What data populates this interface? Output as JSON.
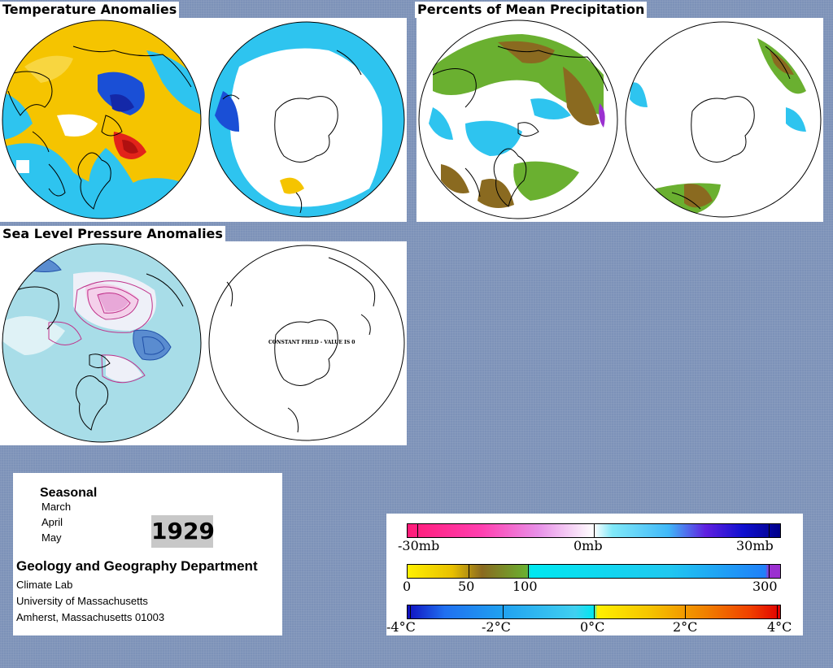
{
  "panels": {
    "temperature": {
      "title": "Temperature Anomalies"
    },
    "precipitation": {
      "title": "Percents of Mean Precipitation"
    },
    "pressure": {
      "title": "Sea Level Pressure Anomalies",
      "constant_field_label": "CONSTANT FIELD - VALUE IS 0"
    }
  },
  "info": {
    "season": "Seasonal",
    "months": [
      "March",
      "April",
      "May"
    ],
    "year": "1929",
    "department": "Geology and Geography Department",
    "lab": "Climate Lab",
    "university": "University of Massachusetts",
    "address": "Amherst, Massachusetts 01003"
  },
  "legend": {
    "pressure": {
      "labels": [
        "-30mb",
        "0mb",
        "30mb"
      ],
      "range": [
        -30,
        30
      ]
    },
    "precip": {
      "labels": [
        "0",
        "50",
        "100",
        "300"
      ],
      "values": [
        0,
        50,
        100,
        300
      ]
    },
    "temp": {
      "labels": [
        "-4°C",
        "-2°C",
        "0°C",
        "2°C",
        "4°C"
      ],
      "range": [
        -4,
        4
      ]
    }
  },
  "colors": {
    "background": "#7d92b8",
    "warm": "#f5c400",
    "cool": "#2ec4ef",
    "hot": "#e2231a",
    "cold": "#1a4fd6",
    "dry": "#8a6a20",
    "wet": "#6ab030",
    "pressure_fill": "#a8dde8",
    "pressure_contour": "#c0308a"
  }
}
